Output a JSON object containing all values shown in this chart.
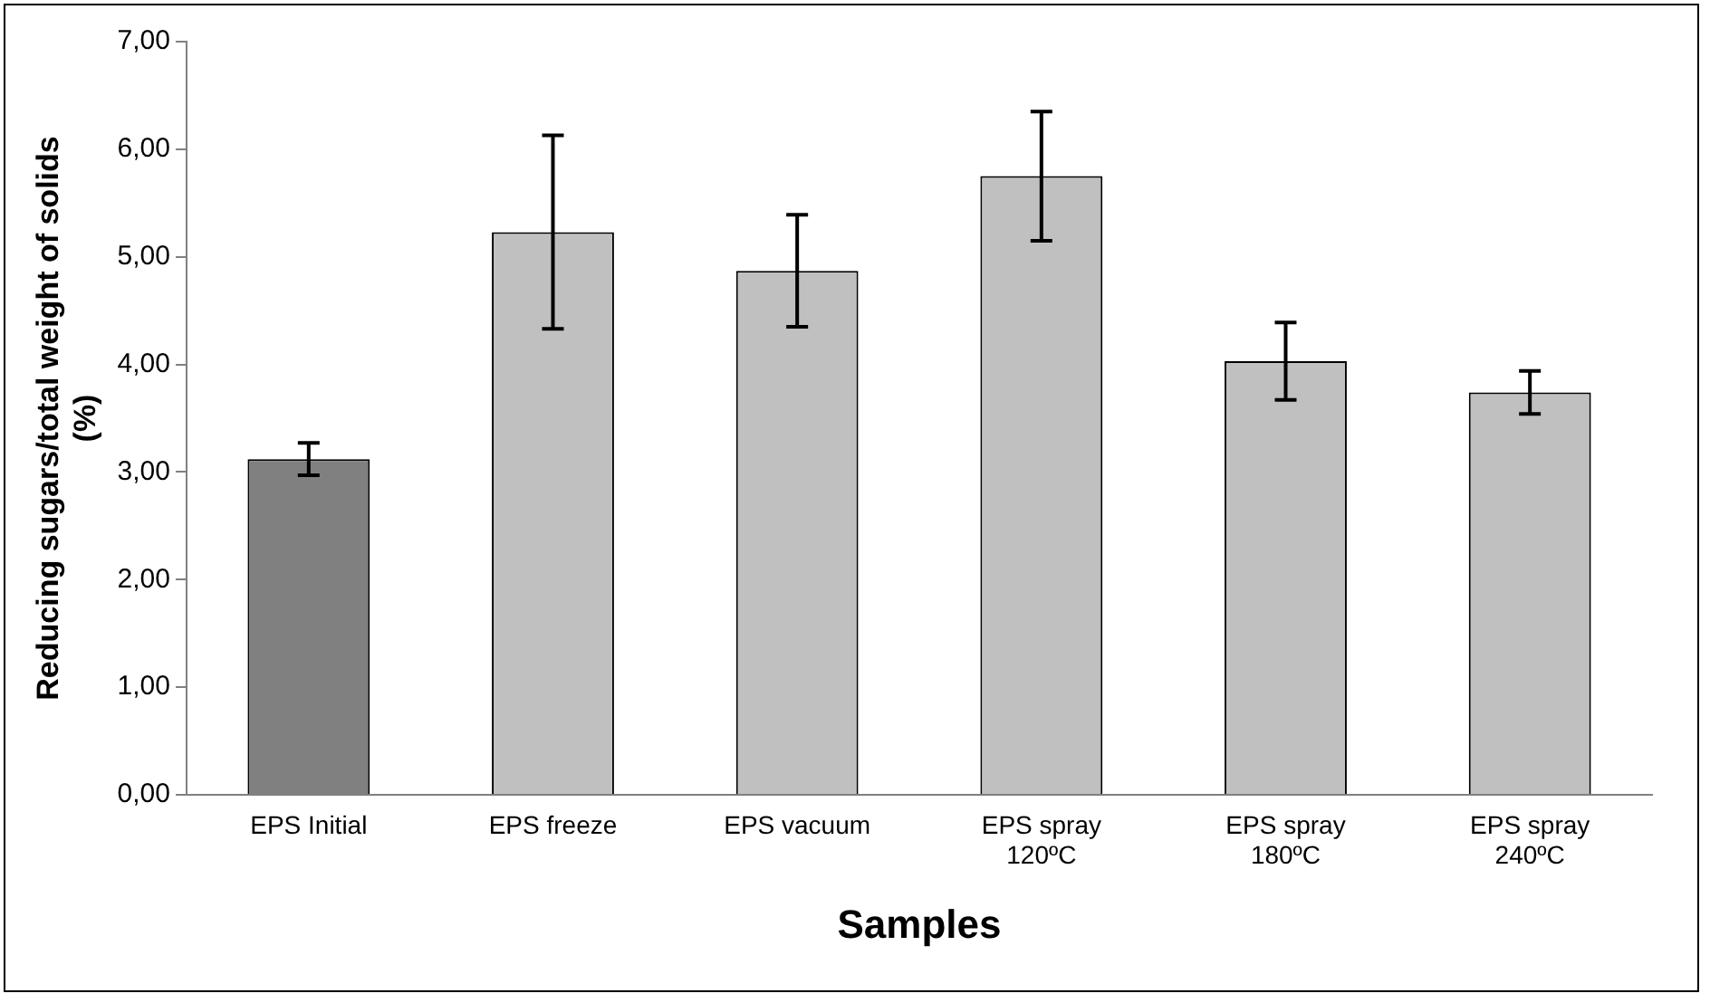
{
  "chart_data": {
    "type": "bar",
    "xlabel": "Samples",
    "ylabel": "Reducing sugars/total weight of solids (%)",
    "categories": [
      "EPS Initial",
      "EPS freeze",
      "EPS vacuum",
      "EPS spray 120ºC",
      "EPS spray 180ºC",
      "EPS spray 240ºC"
    ],
    "values": [
      3.12,
      5.23,
      4.87,
      5.75,
      4.03,
      3.74
    ],
    "errors": [
      0.15,
      0.9,
      0.52,
      0.6,
      0.36,
      0.2
    ],
    "colors": [
      "#808080",
      "#c0c0c0",
      "#c0c0c0",
      "#c0c0c0",
      "#c0c0c0",
      "#c0c0c0"
    ],
    "ylim": [
      0,
      7
    ],
    "yticks": [
      {
        "value": 0,
        "label": "0,00"
      },
      {
        "value": 1,
        "label": "1,00"
      },
      {
        "value": 2,
        "label": "2,00"
      },
      {
        "value": 3,
        "label": "3,00"
      },
      {
        "value": 4,
        "label": "4,00"
      },
      {
        "value": 5,
        "label": "5,00"
      },
      {
        "value": 6,
        "label": "6,00"
      },
      {
        "value": 7,
        "label": "7,00"
      }
    ],
    "grid": false,
    "legend": false
  }
}
